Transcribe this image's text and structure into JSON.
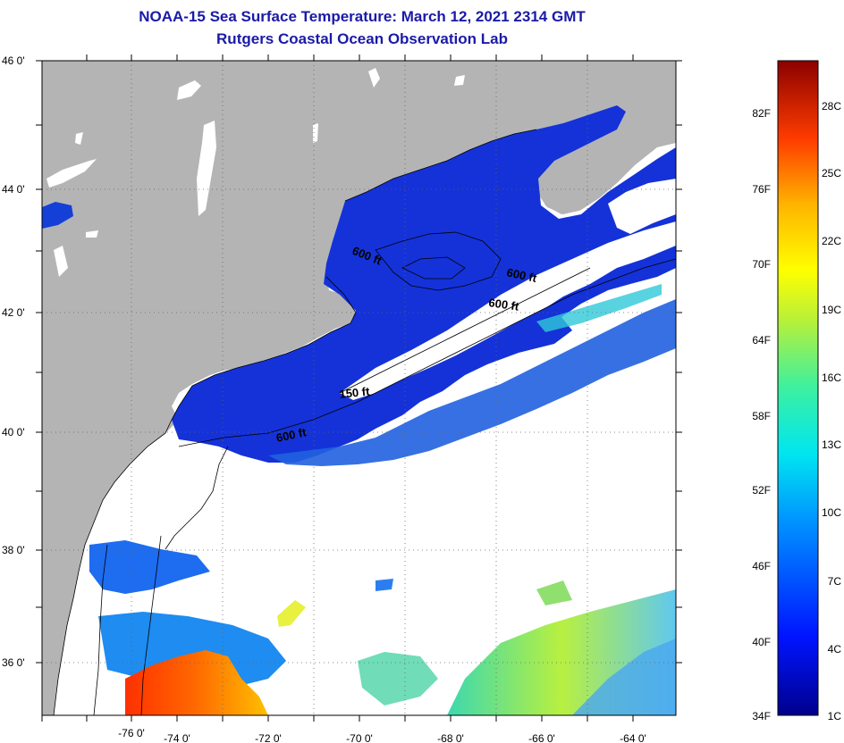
{
  "header": {
    "title": "NOAA-15 Sea Surface Temperature:  March 12, 2021 2314 GMT",
    "subtitle": "Rutgers Coastal Ocean Observation Lab"
  },
  "map": {
    "lat_labels": [
      "46 0'",
      "44 0'",
      "42 0'",
      "40 0'",
      "38 0'",
      "36 0'"
    ],
    "lon_labels": [
      "-76 0'",
      "-74 0'",
      "-72 0'",
      "-70 0'",
      "-68 0'",
      "-66 0'",
      "-64 0'"
    ],
    "contour_labels": [
      "600 ft",
      "600 ft",
      "600 ft",
      "150 ft",
      "600 ft"
    ],
    "colors": {
      "land": "#b4b4b4",
      "cloud": "#ffffff",
      "cold_water": "#1432d8",
      "grid": "#555555"
    }
  },
  "colorbar": {
    "fahrenheit_labels": [
      "82F",
      "76F",
      "70F",
      "64F",
      "58F",
      "52F",
      "46F",
      "40F",
      "34F"
    ],
    "celsius_labels": [
      "28C",
      "25C",
      "22C",
      "19C",
      "16C",
      "13C",
      "10C",
      "7C",
      "4C",
      "1C"
    ]
  }
}
